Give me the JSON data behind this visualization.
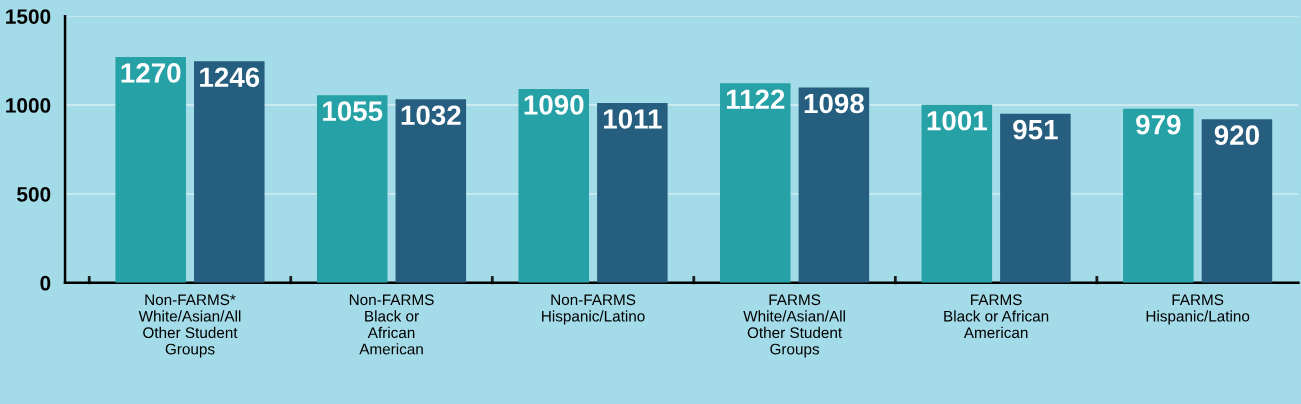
{
  "chart_data": {
    "type": "bar",
    "categories": [
      "Non-FARMS*\nWhite/Asian/All\nOther Student\nGroups",
      "Non-FARMS\nBlack or\nAfrican\nAmerican",
      "Non-FARMS\nHispanic/Latino",
      "FARMS\nWhite/Asian/All\nOther Student\nGroups",
      "FARMS\nBlack or African\nAmerican",
      "FARMS\nHispanic/Latino"
    ],
    "series": [
      {
        "color": "#26a1a6",
        "values": [
          1270,
          1055,
          1090,
          1122,
          1001,
          979
        ]
      },
      {
        "color": "#255e7e",
        "values": [
          1246,
          1032,
          1011,
          1098,
          951,
          920
        ]
      }
    ],
    "ylim": [
      0,
      1500
    ],
    "yticks": [
      0,
      500,
      1000,
      1500
    ],
    "grid": "y",
    "data_labels": true,
    "legend": false
  }
}
